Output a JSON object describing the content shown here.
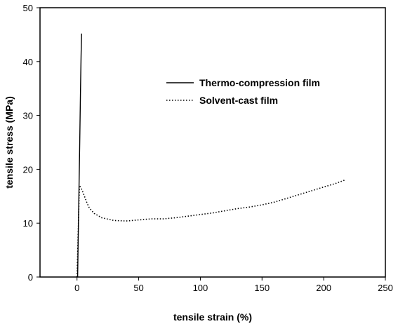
{
  "chart_data": {
    "type": "line",
    "title": "",
    "xlabel": "tensile strain (%)",
    "ylabel": "tensile stress (MPa)",
    "xlim": [
      -30,
      250
    ],
    "ylim": [
      0,
      50
    ],
    "xticks": [
      0,
      50,
      100,
      150,
      200,
      250
    ],
    "yticks": [
      0,
      10,
      20,
      30,
      40,
      50
    ],
    "grid": false,
    "legend_position": "upper-right inside plot",
    "series": [
      {
        "name": "Thermo-compression film",
        "line_style": "solid",
        "color": "#000000",
        "x": [
          0.5,
          1.0,
          1.6,
          2.2,
          2.8,
          3.3,
          3.7
        ],
        "y": [
          0,
          8,
          16,
          25,
          34,
          41,
          45.2
        ]
      },
      {
        "name": "Solvent-cast film",
        "line_style": "dotted",
        "color": "#000000",
        "x": [
          0,
          1,
          2,
          4,
          6,
          8,
          10,
          14,
          20,
          30,
          40,
          50,
          60,
          70,
          80,
          90,
          100,
          110,
          120,
          130,
          140,
          150,
          160,
          170,
          180,
          190,
          200,
          210,
          217
        ],
        "y": [
          0,
          9,
          17,
          16.2,
          15,
          13.8,
          12.8,
          11.8,
          11.0,
          10.5,
          10.4,
          10.6,
          10.8,
          10.8,
          11.0,
          11.3,
          11.6,
          11.9,
          12.3,
          12.7,
          13.0,
          13.4,
          13.9,
          14.6,
          15.3,
          16.0,
          16.7,
          17.4,
          18.0
        ]
      }
    ]
  }
}
